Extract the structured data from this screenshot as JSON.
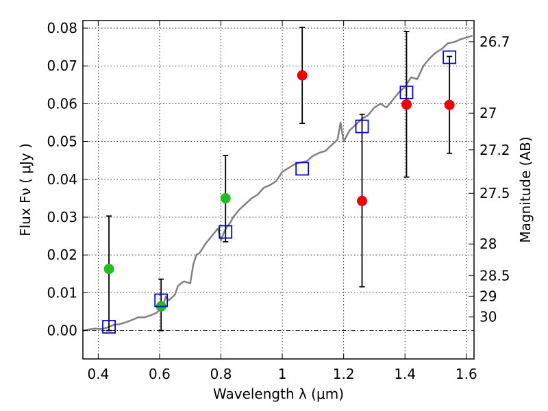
{
  "chart_data": {
    "type": "scatter",
    "xlabel": "Wavelength  λ (μm)",
    "ylabel": "Flux  Fν  ( μJy )",
    "ylabel_right": "Magnitude (AB)",
    "xlim": [
      0.35,
      1.625
    ],
    "ylim": [
      -0.0075,
      0.082
    ],
    "grid": true,
    "xticks": [
      {
        "value": 0.4,
        "label": "0.4"
      },
      {
        "value": 0.6,
        "label": "0.6"
      },
      {
        "value": 0.8,
        "label": "0.8"
      },
      {
        "value": 1.0,
        "label": "1"
      },
      {
        "value": 1.2,
        "label": "1.2"
      },
      {
        "value": 1.4,
        "label": "1.4"
      },
      {
        "value": 1.6,
        "label": "1.6"
      }
    ],
    "yticks": [
      {
        "value": 0.0,
        "label": "0.00"
      },
      {
        "value": 0.01,
        "label": "0.01"
      },
      {
        "value": 0.02,
        "label": "0.02"
      },
      {
        "value": 0.03,
        "label": "0.03"
      },
      {
        "value": 0.04,
        "label": "0.04"
      },
      {
        "value": 0.05,
        "label": "0.05"
      },
      {
        "value": 0.06,
        "label": "0.06"
      },
      {
        "value": 0.07,
        "label": "0.07"
      },
      {
        "value": 0.08,
        "label": "0.08"
      }
    ],
    "right_ticks": [
      {
        "label": "26.7",
        "flux": 0.0764
      },
      {
        "label": "27",
        "flux": 0.0575
      },
      {
        "label": "27.2",
        "flux": 0.0478
      },
      {
        "label": "27.5",
        "flux": 0.0363
      },
      {
        "label": "28",
        "flux": 0.0229
      },
      {
        "label": "28.5",
        "flux": 0.0145
      },
      {
        "label": "29",
        "flux": 0.0091
      },
      {
        "label": "30",
        "flux": 0.0036
      }
    ],
    "series": [
      {
        "kind": "line",
        "color": "#808080",
        "x": [
          0.35,
          0.37,
          0.39,
          0.41,
          0.43,
          0.45,
          0.47,
          0.49,
          0.51,
          0.53,
          0.55,
          0.57,
          0.59,
          0.61,
          0.62,
          0.63,
          0.65,
          0.66,
          0.67,
          0.68,
          0.7,
          0.71,
          0.72,
          0.73,
          0.75,
          0.77,
          0.79,
          0.8,
          0.81,
          0.82,
          0.83,
          0.84,
          0.86,
          0.88,
          0.9,
          0.92,
          0.94,
          0.96,
          0.98,
          1.0,
          1.02,
          1.04,
          1.06,
          1.08,
          1.1,
          1.12,
          1.14,
          1.16,
          1.18,
          1.19,
          1.2,
          1.22,
          1.24,
          1.26,
          1.28,
          1.3,
          1.32,
          1.34,
          1.36,
          1.38,
          1.4,
          1.42,
          1.44,
          1.46,
          1.48,
          1.5,
          1.52,
          1.54,
          1.56,
          1.58,
          1.6,
          1.62
        ],
        "y": [
          0.0,
          0.0003,
          0.0005,
          0.0004,
          0.0008,
          0.0015,
          0.0017,
          0.0022,
          0.0028,
          0.0035,
          0.0035,
          0.004,
          0.0047,
          0.006,
          0.009,
          0.008,
          0.0095,
          0.0118,
          0.0125,
          0.013,
          0.0125,
          0.0175,
          0.02,
          0.0205,
          0.023,
          0.025,
          0.027,
          0.0238,
          0.026,
          0.0275,
          0.0285,
          0.03,
          0.032,
          0.0335,
          0.035,
          0.036,
          0.0378,
          0.0385,
          0.0395,
          0.042,
          0.043,
          0.044,
          0.0445,
          0.0448,
          0.0462,
          0.047,
          0.0475,
          0.049,
          0.0505,
          0.055,
          0.05,
          0.053,
          0.0545,
          0.056,
          0.057,
          0.059,
          0.06,
          0.059,
          0.061,
          0.063,
          0.0645,
          0.067,
          0.0665,
          0.07,
          0.072,
          0.0735,
          0.0745,
          0.076,
          0.0763,
          0.077,
          0.0775,
          0.078
        ]
      },
      {
        "kind": "squares",
        "color": "#0000cc",
        "x": [
          0.435,
          0.605,
          0.815,
          1.065,
          1.26,
          1.405,
          1.545
        ],
        "y": [
          0.001,
          0.008,
          0.0261,
          0.0428,
          0.054,
          0.063,
          0.0723
        ]
      },
      {
        "kind": "points",
        "color": "#22bb22",
        "x": [
          0.435,
          0.605,
          0.815
        ],
        "y": [
          0.0163,
          0.0064,
          0.035
        ],
        "err_low": [
          0.0163,
          0.0064,
          0.0115
        ],
        "err_high": [
          0.014,
          0.0072,
          0.0113
        ]
      },
      {
        "kind": "points",
        "color": "#ee0000",
        "x": [
          1.065,
          1.26,
          1.405,
          1.545
        ],
        "y": [
          0.0675,
          0.0343,
          0.0598,
          0.0597
        ],
        "err_low": [
          0.0127,
          0.0227,
          0.0192,
          0.0128
        ],
        "err_high": [
          0.0127,
          0.0229,
          0.0193,
          0.0128
        ]
      }
    ]
  }
}
